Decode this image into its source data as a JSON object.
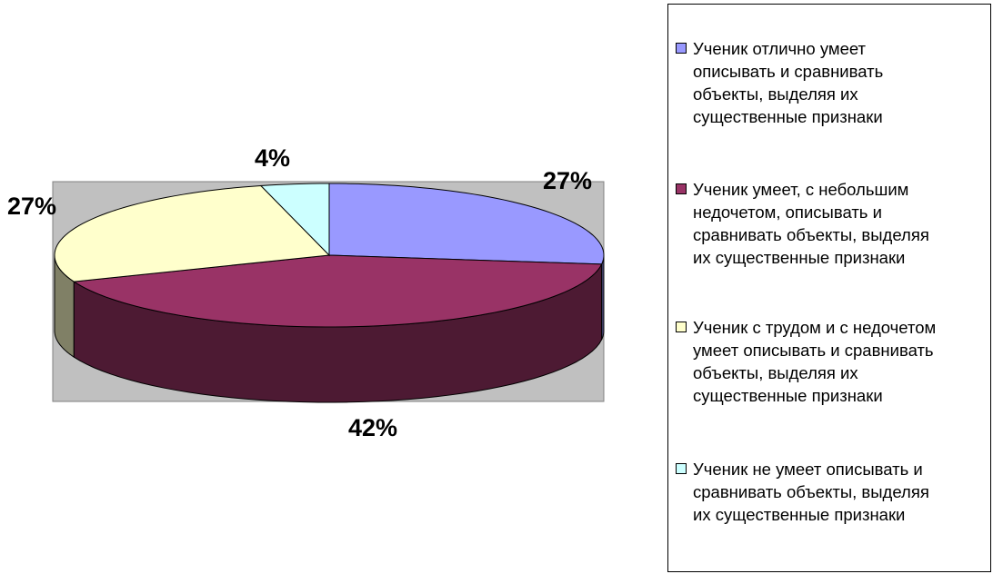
{
  "chart_data": {
    "type": "pie",
    "style": "3d",
    "categories": [
      "Ученик  отлично умеет описывать и сравнивать объекты, выделяя их существенные признаки",
      "Ученик  умеет,  с небольшим недочетом, описывать и сравнивать объекты, выделяя их существенные признаки",
      "Ученик  с трудом и с недочетом умеет  описывать и сравнивать объекты, выделяя их существенные признаки",
      "Ученик  не  умеет  описывать и сравнивать объекты, выделяя их существенные признаки"
    ],
    "values": [
      27,
      42,
      27,
      4
    ],
    "labels": [
      "27%",
      "42%",
      "27%",
      "4%"
    ],
    "colors": [
      "#9999ff",
      "#993366",
      "#ffffcc",
      "#ccffff"
    ],
    "plot_area_color": "#c0c0c0",
    "legend": {
      "position": "right",
      "items": [
        "Ученик  отлично умеет\nописывать и сравнивать\nобъекты, выделяя их\nсущественные признаки",
        "Ученик  умеет,  с небольшим\nнедочетом, описывать и\nсравнивать объекты, выделяя\nих существенные признаки",
        "Ученик  с трудом и с недочетом\nумеет  описывать и сравнивать\nобъекты, выделяя их\nсущественные признаки",
        "Ученик  не  умеет  описывать и\nсравнивать объекты, выделяя\nих существенные признаки"
      ]
    }
  }
}
